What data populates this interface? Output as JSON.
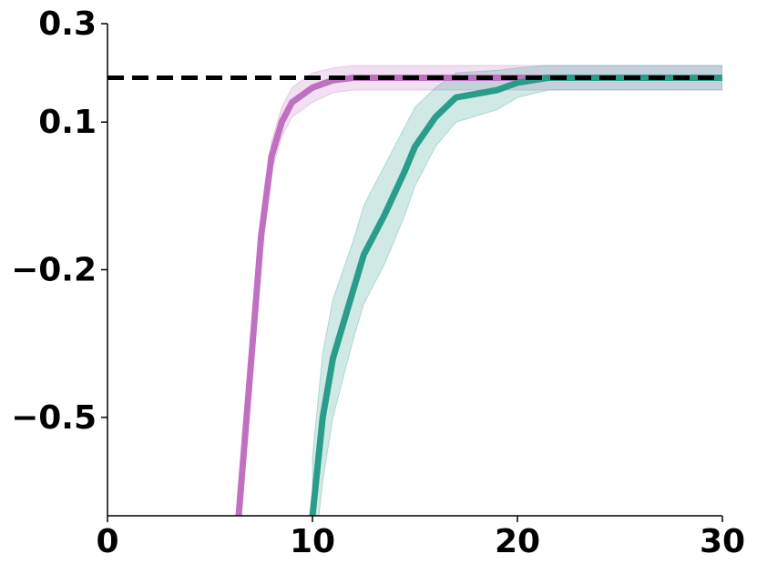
{
  "chart_data": {
    "type": "line",
    "xlim": [
      0,
      30
    ],
    "xticks": [
      0,
      10,
      20,
      30
    ],
    "ylim": [
      -0.7,
      0.3
    ],
    "yticks": [
      {
        "value": -0.5,
        "label": "−0.5"
      },
      {
        "value": -0.2,
        "label": "−0.2"
      },
      0.1,
      0.3
    ],
    "reference_line": {
      "value": 0.19,
      "color": "#000000"
    },
    "series": [
      {
        "color": "#c070c0",
        "x": [
          6.4,
          7,
          7.5,
          8,
          8.5,
          9,
          10,
          11,
          12,
          14,
          30
        ],
        "values": [
          -0.7,
          -0.39,
          -0.13,
          0.03,
          0.1,
          0.14,
          0.17,
          0.185,
          0.19,
          0.19,
          0.19
        ],
        "lower": [
          -0.72,
          -0.41,
          -0.15,
          0.0,
          0.07,
          0.11,
          0.14,
          0.16,
          0.165,
          0.165,
          0.165
        ],
        "upper": [
          -0.68,
          -0.37,
          -0.1,
          0.06,
          0.13,
          0.17,
          0.2,
          0.21,
          0.215,
          0.215,
          0.215
        ]
      },
      {
        "color": "#2a9d8a",
        "x": [
          10,
          10.5,
          11,
          12,
          12.5,
          13.5,
          14.5,
          15,
          16,
          17,
          19,
          20,
          21.5,
          30
        ],
        "values": [
          -0.7,
          -0.5,
          -0.38,
          -0.24,
          -0.17,
          -0.09,
          0.0,
          0.05,
          0.11,
          0.15,
          0.165,
          0.18,
          0.19,
          0.19
        ],
        "lower": [
          -0.82,
          -0.63,
          -0.5,
          -0.34,
          -0.27,
          -0.19,
          -0.09,
          -0.03,
          0.05,
          0.1,
          0.125,
          0.15,
          0.165,
          0.165
        ],
        "upper": [
          -0.58,
          -0.37,
          -0.26,
          -0.14,
          -0.07,
          0.01,
          0.09,
          0.13,
          0.17,
          0.2,
          0.205,
          0.21,
          0.215,
          0.215
        ]
      }
    ]
  }
}
